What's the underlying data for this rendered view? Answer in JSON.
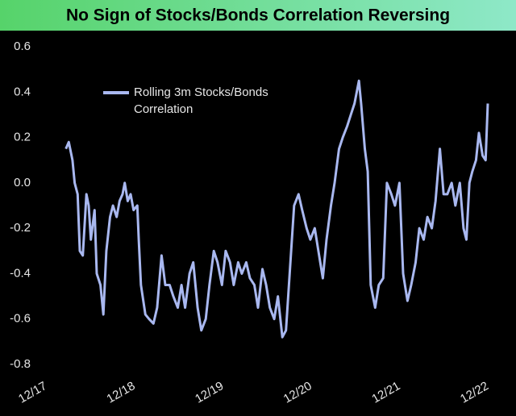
{
  "chart_data": {
    "type": "line",
    "title": "No Sign of Stocks/Bonds Correlation Reversing",
    "xlim": [
      0,
      60
    ],
    "xticks": [
      {
        "value": 0,
        "label": "12/17"
      },
      {
        "value": 12,
        "label": "12/18"
      },
      {
        "value": 24,
        "label": "12/19"
      },
      {
        "value": 36,
        "label": "12/20"
      },
      {
        "value": 48,
        "label": "12/21"
      },
      {
        "value": 60,
        "label": "12/22"
      }
    ],
    "ylim": [
      -0.8,
      0.6
    ],
    "yticks": [
      0.6,
      0.4,
      0.2,
      {
        "value": 0,
        "label": "0.0"
      },
      -0.2,
      -0.4,
      -0.6,
      -0.8
    ],
    "grid": false,
    "x": [
      2.7,
      3.1,
      3.6,
      3.9,
      4.3,
      4.6,
      5.0,
      5.5,
      5.8,
      6.1,
      6.6,
      6.9,
      7.4,
      7.8,
      8.2,
      8.7,
      9.1,
      9.6,
      10.0,
      10.4,
      10.7,
      11.1,
      11.5,
      11.9,
      12.4,
      12.6,
      12.9,
      13.5,
      14.0,
      14.6,
      15.1,
      15.7,
      16.2,
      16.8,
      17.3,
      17.9,
      18.4,
      18.9,
      19.5,
      20.0,
      20.6,
      21.1,
      21.7,
      22.2,
      22.8,
      23.3,
      23.9,
      24.4,
      25.0,
      25.5,
      26.1,
      26.6,
      27.2,
      27.7,
      28.3,
      28.8,
      29.4,
      29.9,
      30.4,
      31.0,
      31.5,
      32.1,
      32.6,
      33.2,
      33.7,
      34.3,
      34.8,
      35.4,
      35.9,
      36.5,
      37.0,
      37.6,
      38.1,
      38.7,
      39.2,
      39.8,
      40.3,
      40.9,
      41.4,
      41.9,
      42.5,
      42.8,
      43.3,
      43.7,
      44.1,
      44.7,
      45.2,
      45.8,
      46.3,
      46.9,
      47.4,
      48.0,
      48.5,
      49.1,
      49.6,
      50.2,
      50.7,
      51.3,
      51.8,
      52.4,
      52.9,
      53.5,
      54.0,
      54.5,
      55.1,
      55.6,
      56.2,
      56.7,
      57.1,
      57.5,
      57.9,
      58.4,
      58.8,
      59.3,
      59.7,
      60.0
    ],
    "series": [
      {
        "name": "Rolling 3m Stocks/Bonds Correlation",
        "color": "#a9b8f0",
        "values": [
          0.15,
          0.18,
          0.1,
          0.0,
          -0.05,
          -0.3,
          -0.32,
          -0.05,
          -0.1,
          -0.25,
          -0.12,
          -0.4,
          -0.45,
          -0.58,
          -0.3,
          -0.15,
          -0.1,
          -0.15,
          -0.08,
          -0.05,
          0.0,
          -0.08,
          -0.05,
          -0.12,
          -0.1,
          -0.25,
          -0.45,
          -0.58,
          -0.6,
          -0.62,
          -0.55,
          -0.32,
          -0.45,
          -0.45,
          -0.5,
          -0.55,
          -0.45,
          -0.55,
          -0.4,
          -0.35,
          -0.55,
          -0.65,
          -0.6,
          -0.45,
          -0.3,
          -0.35,
          -0.45,
          -0.3,
          -0.35,
          -0.45,
          -0.35,
          -0.4,
          -0.35,
          -0.42,
          -0.45,
          -0.55,
          -0.38,
          -0.45,
          -0.55,
          -0.6,
          -0.5,
          -0.68,
          -0.65,
          -0.35,
          -0.1,
          -0.05,
          -0.12,
          -0.2,
          -0.25,
          -0.2,
          -0.3,
          -0.42,
          -0.25,
          -0.1,
          0.0,
          0.15,
          0.2,
          0.25,
          0.3,
          0.35,
          0.45,
          0.35,
          0.15,
          0.05,
          -0.45,
          -0.55,
          -0.45,
          -0.42,
          0.0,
          -0.05,
          -0.1,
          0.0,
          -0.4,
          -0.52,
          -0.45,
          -0.35,
          -0.2,
          -0.25,
          -0.15,
          -0.2,
          -0.08,
          0.15,
          -0.05,
          -0.05,
          0.0,
          -0.1,
          0.0,
          -0.2,
          -0.25,
          0.0,
          0.05,
          0.1,
          0.22,
          0.12,
          0.1,
          0.35
        ]
      }
    ]
  }
}
